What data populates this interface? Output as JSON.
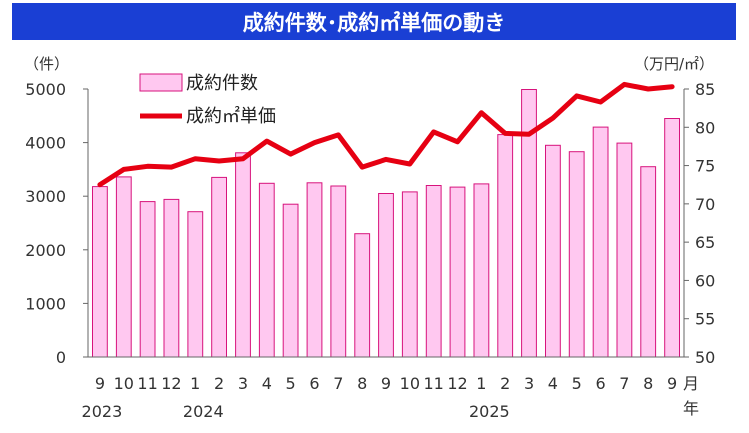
{
  "chart_data": {
    "type": "bar",
    "title": "成約件数･成約㎡単価の動き",
    "y_left_unit": "（件）",
    "y_right_unit": "（万円/㎡）",
    "x_unit": "月",
    "year_unit": "年",
    "y_left_lim": [
      0,
      5000
    ],
    "y_right_lim": [
      50,
      85
    ],
    "y_left_ticks": [
      "0",
      "1000",
      "2000",
      "3000",
      "4000",
      "5000"
    ],
    "y_right_ticks": [
      "50",
      "55",
      "60",
      "65",
      "70",
      "75",
      "80",
      "85"
    ],
    "categories": [
      "9",
      "10",
      "11",
      "12",
      "1",
      "2",
      "3",
      "4",
      "5",
      "6",
      "7",
      "8",
      "9",
      "10",
      "11",
      "12",
      "1",
      "2",
      "3",
      "4",
      "5",
      "6",
      "7",
      "8",
      "9"
    ],
    "years": [
      {
        "label": "2023",
        "index": 0
      },
      {
        "label": "2024",
        "index": 4
      },
      {
        "label": "2025",
        "index": 16
      }
    ],
    "series": [
      {
        "name": "成約件数",
        "type": "bar",
        "axis": "left",
        "values": [
          3180,
          3360,
          2900,
          2940,
          2710,
          3350,
          3810,
          3240,
          2850,
          3250,
          3190,
          2300,
          3050,
          3080,
          3200,
          3170,
          3230,
          4150,
          4990,
          3950,
          3830,
          4290,
          3990,
          3550,
          4450
        ]
      },
      {
        "name": "成約㎡単価",
        "type": "line",
        "axis": "right",
        "values": [
          72.5,
          74.5,
          74.9,
          74.8,
          75.9,
          75.6,
          75.9,
          78.2,
          76.5,
          78.0,
          79.0,
          74.8,
          75.8,
          75.2,
          79.4,
          78.1,
          81.9,
          79.2,
          79.1,
          81.2,
          84.1,
          83.3,
          85.6,
          85.0,
          85.3
        ]
      }
    ],
    "colors": {
      "title_bg": "#1a3fd4",
      "bar_fill": "#ffc8f0",
      "bar_stroke": "#d7137c",
      "line": "#e60012",
      "axis": "#666666"
    }
  }
}
